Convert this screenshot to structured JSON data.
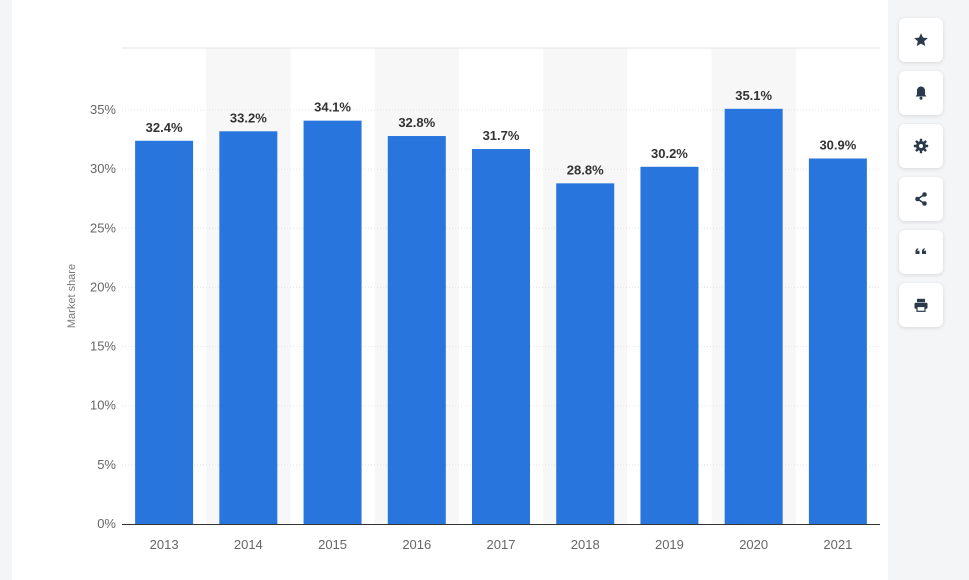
{
  "chart_data": {
    "type": "bar",
    "categories": [
      "2013",
      "2014",
      "2015",
      "2016",
      "2017",
      "2018",
      "2019",
      "2020",
      "2021"
    ],
    "values": [
      32.4,
      33.2,
      34.1,
      32.8,
      31.7,
      28.8,
      30.2,
      35.1,
      30.9
    ],
    "value_labels": [
      "32.4%",
      "33.2%",
      "34.1%",
      "32.8%",
      "31.7%",
      "28.8%",
      "30.2%",
      "35.1%",
      "30.9%"
    ],
    "ylabel": "Market share",
    "yticks": [
      0,
      5,
      10,
      15,
      20,
      25,
      30,
      35
    ],
    "ytick_labels": [
      "0%",
      "5%",
      "10%",
      "15%",
      "20%",
      "25%",
      "30%",
      "35%"
    ],
    "ylim": [
      0,
      35
    ],
    "grid": true,
    "bar_color": "#2876dd",
    "alt_band_color": "#f7f7f7"
  },
  "toolbar": {
    "items": [
      {
        "name": "star-icon"
      },
      {
        "name": "bell-icon"
      },
      {
        "name": "gear-icon"
      },
      {
        "name": "share-icon"
      },
      {
        "name": "quote-icon"
      },
      {
        "name": "print-icon"
      }
    ]
  }
}
